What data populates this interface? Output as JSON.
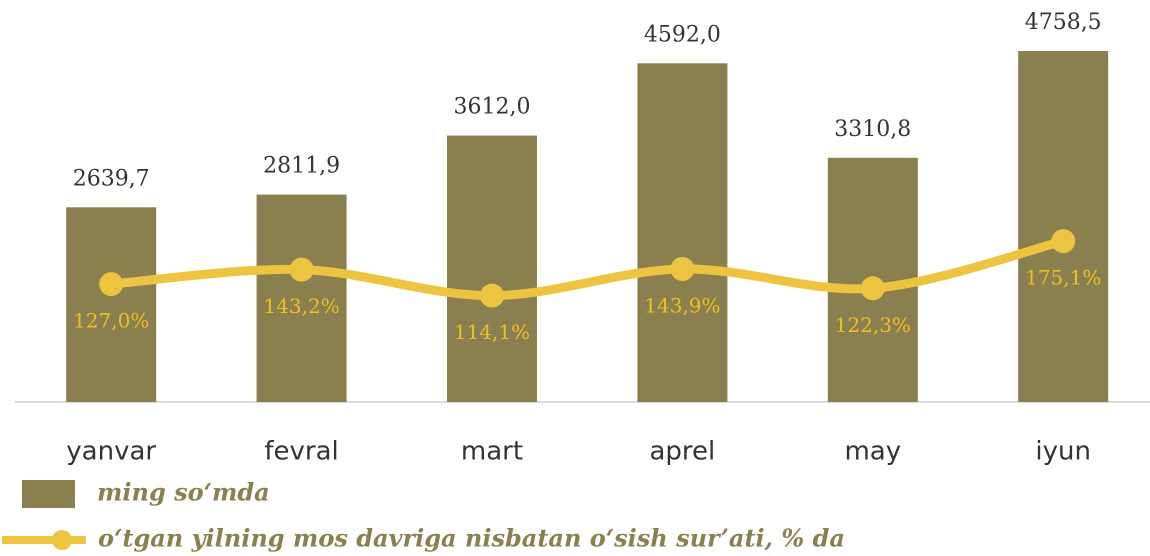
{
  "chart_data": {
    "type": "bar",
    "categories": [
      "yanvar",
      "fevral",
      "mart",
      "aprel",
      "may",
      "iyun"
    ],
    "ylim": [
      0,
      5450
    ],
    "y2lim": [
      -5,
      445
    ],
    "series": [
      {
        "name": "ming so‘mda",
        "type": "bar",
        "color": "#8a7f4f",
        "values": [
          2639.7,
          2811.9,
          3612.0,
          4592.0,
          3310.8,
          4758.5
        ],
        "value_labels": [
          "2639,7",
          "2811,9",
          "3612,0",
          "4592,0",
          "3310,8",
          "4758,5"
        ]
      },
      {
        "name": "o‘tgan yilning mos davriga nisbatan o‘sish sur’ati, % da",
        "type": "line",
        "axis": "y2",
        "color": "#ecc440",
        "values": [
          127.0,
          143.2,
          114.1,
          143.9,
          122.3,
          175.1
        ],
        "value_labels": [
          "127,0%",
          "143,2%",
          "114,1%",
          "143,9%",
          "122,3%",
          "175,1%"
        ]
      }
    ]
  }
}
